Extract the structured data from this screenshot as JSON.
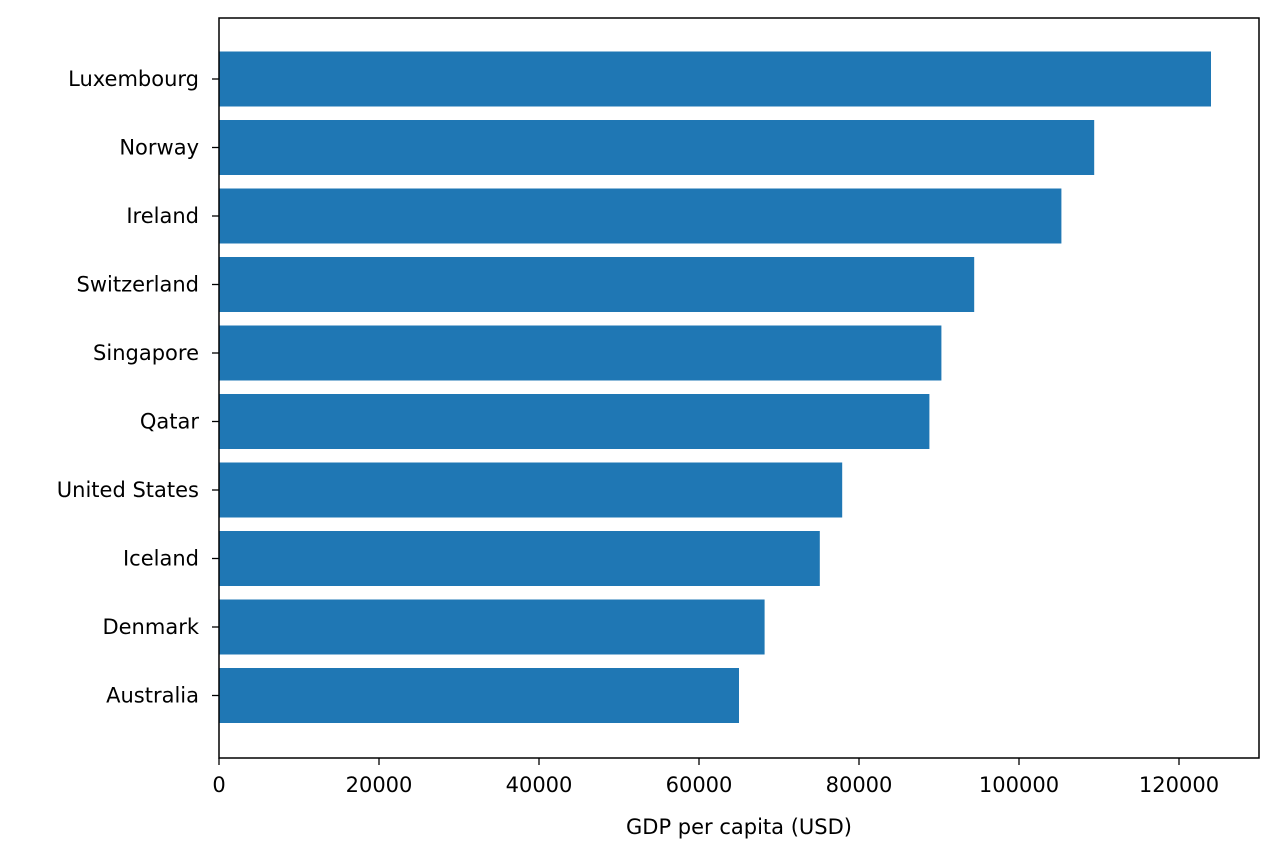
{
  "chart_data": {
    "type": "bar",
    "orientation": "horizontal",
    "title": "",
    "xlabel": "GDP per capita (USD)",
    "ylabel": "",
    "categories": [
      "Luxembourg",
      "Norway",
      "Ireland",
      "Switzerland",
      "Singapore",
      "Qatar",
      "United States",
      "Iceland",
      "Denmark",
      "Australia"
    ],
    "values": [
      124000,
      109400,
      105300,
      94400,
      90300,
      88800,
      77900,
      75100,
      68200,
      65000
    ],
    "xlim": [
      0,
      130000
    ],
    "xticks": [
      0,
      20000,
      40000,
      60000,
      80000,
      100000,
      120000
    ],
    "xtick_labels": [
      "0",
      "20000",
      "40000",
      "60000",
      "80000",
      "100000",
      "120000"
    ],
    "bar_color": "#1f77b4",
    "grid": false
  }
}
